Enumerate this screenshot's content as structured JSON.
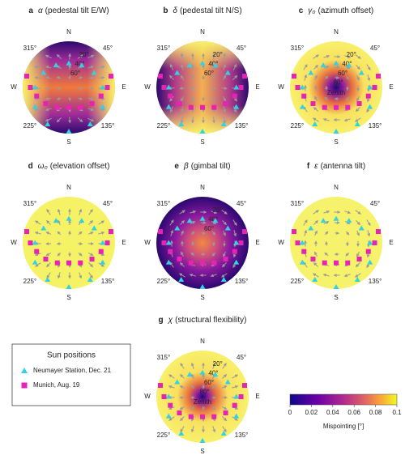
{
  "chart_data": [
    {
      "type": "polar-map",
      "label": "a",
      "symbol": "α",
      "title": "(pedestal tilt E/W)",
      "directions": [
        {
          "value": 0,
          "label": "N"
        },
        {
          "value": 90,
          "label": "E"
        },
        {
          "value": 180,
          "label": "S"
        },
        {
          "value": 270,
          "label": "W"
        }
      ],
      "azimuth_ticks": [
        {
          "value": 45,
          "label": "45°"
        },
        {
          "value": 135,
          "label": "135°"
        },
        {
          "value": 225,
          "label": "225°"
        },
        {
          "value": 315,
          "label": "315°"
        }
      ],
      "elevation_ticks": [
        {
          "value": 20,
          "label": "20°"
        },
        {
          "value": 40,
          "label": "40°"
        },
        {
          "value": 60,
          "label": "60°"
        }
      ]
    },
    {
      "type": "polar-map",
      "label": "b",
      "symbol": "δ",
      "title": "(pedestal tilt N/S)",
      "directions": [
        {
          "value": 0,
          "label": "N"
        },
        {
          "value": 90,
          "label": "E"
        },
        {
          "value": 180,
          "label": "S"
        },
        {
          "value": 270,
          "label": "W"
        }
      ],
      "azimuth_ticks": [
        {
          "value": 45,
          "label": "45°"
        },
        {
          "value": 135,
          "label": "135°"
        },
        {
          "value": 225,
          "label": "225°"
        },
        {
          "value": 315,
          "label": "315°"
        }
      ],
      "elevation_ticks": [
        {
          "value": 20,
          "label": "20°"
        },
        {
          "value": 40,
          "label": "40°"
        },
        {
          "value": 60,
          "label": "60°"
        }
      ]
    },
    {
      "type": "polar-map",
      "label": "c",
      "symbol": "γ₀",
      "title": "(azimuth offset)",
      "directions": [
        {
          "value": 0,
          "label": "N"
        },
        {
          "value": 90,
          "label": "E"
        },
        {
          "value": 180,
          "label": "S"
        },
        {
          "value": 270,
          "label": "W"
        }
      ],
      "azimuth_ticks": [
        {
          "value": 45,
          "label": "45°"
        },
        {
          "value": 135,
          "label": "135°"
        },
        {
          "value": 225,
          "label": "225°"
        },
        {
          "value": 315,
          "label": "315°"
        }
      ],
      "elevation_ticks": [
        {
          "value": 20,
          "label": "20°"
        },
        {
          "value": 40,
          "label": "40°"
        },
        {
          "value": 60,
          "label": "60°"
        },
        {
          "value": 80,
          "label": "80°"
        }
      ],
      "zenith_label": "Zenith"
    },
    {
      "type": "polar-map",
      "label": "d",
      "symbol": "ω₀",
      "title": "(elevation offset)",
      "directions": [
        {
          "value": 0,
          "label": "N"
        },
        {
          "value": 90,
          "label": "E"
        },
        {
          "value": 180,
          "label": "S"
        },
        {
          "value": 270,
          "label": "W"
        }
      ],
      "azimuth_ticks": [
        {
          "value": 45,
          "label": "45°"
        },
        {
          "value": 135,
          "label": "135°"
        },
        {
          "value": 225,
          "label": "225°"
        },
        {
          "value": 315,
          "label": "315°"
        }
      ]
    },
    {
      "type": "polar-map",
      "label": "e",
      "symbol": "β",
      "title": "(gimbal tilt)",
      "directions": [
        {
          "value": 0,
          "label": "N"
        },
        {
          "value": 90,
          "label": "E"
        },
        {
          "value": 180,
          "label": "S"
        },
        {
          "value": 270,
          "label": "W"
        }
      ],
      "azimuth_ticks": [
        {
          "value": 45,
          "label": "45°"
        },
        {
          "value": 135,
          "label": "135°"
        },
        {
          "value": 225,
          "label": "225°"
        },
        {
          "value": 315,
          "label": "315°"
        }
      ],
      "elevation_ticks": [
        {
          "value": 20,
          "label": "20°"
        },
        {
          "value": 40,
          "label": "40°"
        },
        {
          "value": 60,
          "label": "60°"
        }
      ]
    },
    {
      "type": "polar-map",
      "label": "f",
      "symbol": "ε",
      "title": "(antenna tilt)",
      "directions": [
        {
          "value": 0,
          "label": "N"
        },
        {
          "value": 90,
          "label": "E"
        },
        {
          "value": 180,
          "label": "S"
        },
        {
          "value": 270,
          "label": "W"
        }
      ],
      "azimuth_ticks": [
        {
          "value": 45,
          "label": "45°"
        },
        {
          "value": 135,
          "label": "135°"
        },
        {
          "value": 225,
          "label": "225°"
        },
        {
          "value": 315,
          "label": "315°"
        }
      ]
    },
    {
      "type": "polar-map",
      "label": "g",
      "symbol": "χ",
      "title": "(structural flexibility)",
      "directions": [
        {
          "value": 0,
          "label": "N"
        },
        {
          "value": 90,
          "label": "E"
        },
        {
          "value": 180,
          "label": "S"
        },
        {
          "value": 270,
          "label": "W"
        }
      ],
      "azimuth_ticks": [
        {
          "value": 45,
          "label": "45°"
        },
        {
          "value": 135,
          "label": "135°"
        },
        {
          "value": 225,
          "label": "225°"
        },
        {
          "value": 315,
          "label": "315°"
        }
      ],
      "elevation_ticks": [
        {
          "value": 20,
          "label": "20°"
        },
        {
          "value": 40,
          "label": "40°"
        },
        {
          "value": 60,
          "label": "60°"
        },
        {
          "value": 80,
          "label": "80°"
        }
      ],
      "zenith_label": "Zenith"
    }
  ],
  "sun_positions": {
    "title": "Sun positions",
    "series": [
      {
        "name": "Neumayer Station, Dec. 21",
        "color": "#33d1e6",
        "marker": "triangle",
        "azimuth": [
          0,
          30,
          60,
          90,
          120,
          150,
          180,
          210,
          240,
          270,
          300,
          330
        ],
        "elevation": [
          43,
          40,
          33,
          24,
          14,
          7,
          4,
          7,
          14,
          24,
          33,
          40
        ]
      },
      {
        "name": "Munich, Aug. 19",
        "color": "#e623b4",
        "marker": "square",
        "azimuth": [
          75,
          90,
          105,
          125,
          150,
          180,
          210,
          235,
          255,
          270,
          285
        ],
        "elevation": [
          5,
          15,
          25,
          35,
          45,
          51,
          45,
          35,
          25,
          15,
          5
        ]
      }
    ]
  },
  "colorbar": {
    "label": "Mispointing [°]",
    "lim": [
      0,
      0.1
    ],
    "ticks": [
      0,
      0.02,
      0.04,
      0.06,
      0.08,
      0.1
    ]
  }
}
